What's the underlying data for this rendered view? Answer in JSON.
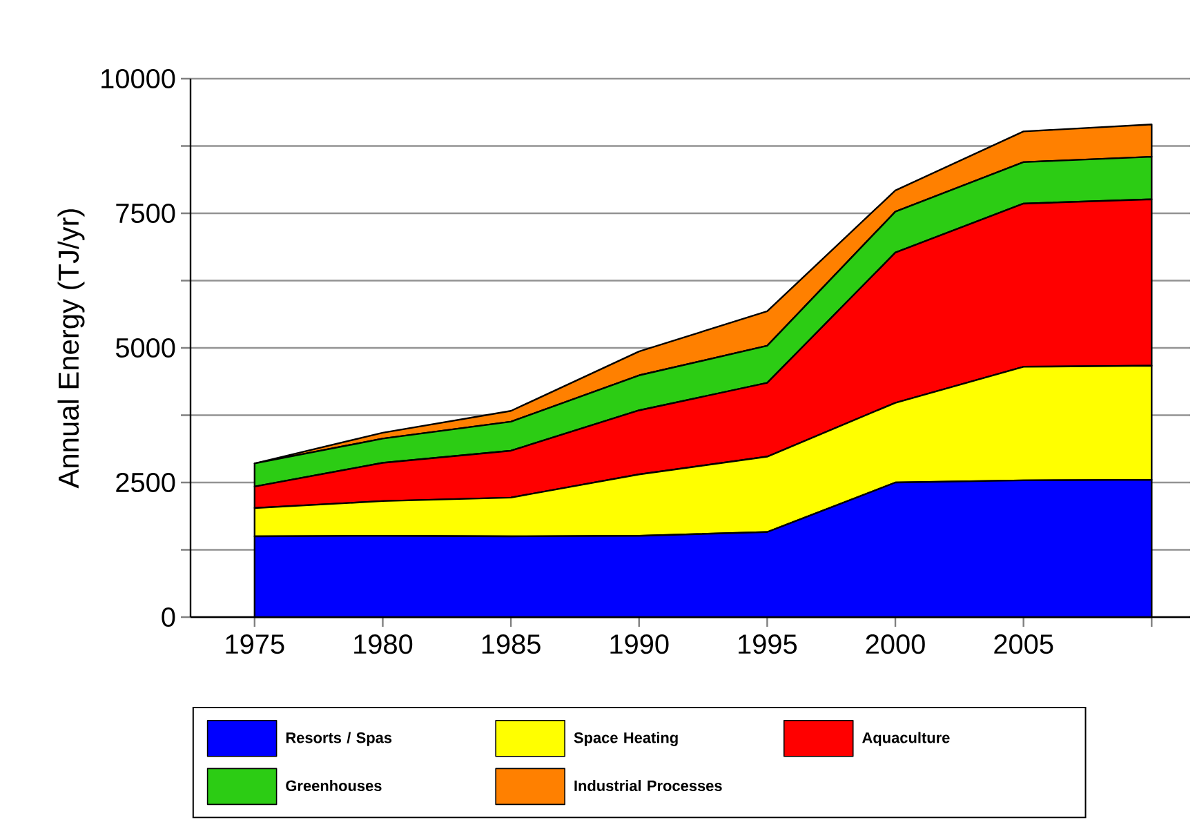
{
  "chart_data": {
    "type": "area",
    "stacked": true,
    "ylabel": "Annual Energy (TJ/yr)",
    "x": [
      1975,
      1980,
      1985,
      1990,
      1995,
      2000,
      2005,
      2010
    ],
    "xlim": [
      1972.5,
      2011.5
    ],
    "xticks": [
      1975,
      1980,
      1985,
      1990,
      1995,
      2000,
      2005,
      {
        "value": 2010,
        "label": null
      }
    ],
    "ylim": [
      0,
      10000
    ],
    "yticks": [
      0,
      {
        "value": 1250,
        "label": null
      },
      2500,
      {
        "value": 3750,
        "label": null
      },
      5000,
      {
        "value": 6250,
        "label": null
      },
      7500,
      {
        "value": 8750,
        "label": null
      },
      10000
    ],
    "grid": "y",
    "legend": "bottom",
    "series": [
      {
        "name": "Resorts / Spas",
        "color": "#0000ff",
        "values": [
          1500,
          1510,
          1500,
          1510,
          1580,
          2500,
          2540,
          2550
        ]
      },
      {
        "name": "Space Heating",
        "color": "#ffff00",
        "values": [
          525,
          645,
          720,
          1140,
          1400,
          1480,
          2110,
          2120
        ]
      },
      {
        "name": "Aquaculture",
        "color": "#ff0000",
        "values": [
          400,
          710,
          870,
          1190,
          1370,
          2790,
          3030,
          3090
        ]
      },
      {
        "name": "Greenhouses",
        "color": "#2ccc14",
        "values": [
          430,
          450,
          540,
          650,
          690,
          760,
          770,
          790
        ]
      },
      {
        "name": "Industrial Processes",
        "color": "#ff8000",
        "values": [
          0,
          110,
          200,
          445,
          640,
          395,
          570,
          600
        ]
      }
    ]
  }
}
